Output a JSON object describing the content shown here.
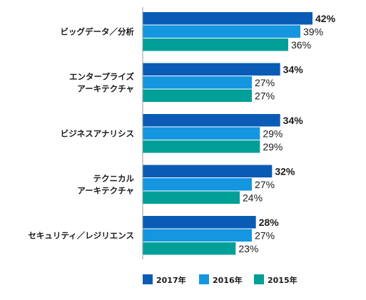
{
  "chart_data": {
    "type": "bar",
    "orientation": "horizontal",
    "categories": [
      [
        "ビッグデータ／分析"
      ],
      [
        "エンタープライズ",
        "アーキテクチャ"
      ],
      [
        "ビジネスアナリシス"
      ],
      [
        "テクニカル",
        "アーキテクチャ"
      ],
      [
        "セキュリティ／レジリエンス"
      ]
    ],
    "series": [
      {
        "name": "2017年",
        "color": "#0a5bb6",
        "values": [
          42,
          34,
          34,
          32,
          28
        ],
        "labels": [
          "42%",
          "34%",
          "34%",
          "32%",
          "28%"
        ],
        "bold_labels": true
      },
      {
        "name": "2016年",
        "color": "#1596e0",
        "values": [
          39,
          27,
          29,
          27,
          27
        ],
        "labels": [
          "39%",
          "27%",
          "29%",
          "27%",
          "27%"
        ],
        "bold_labels": false
      },
      {
        "name": "2015年",
        "color": "#009f98",
        "values": [
          36,
          27,
          29,
          24,
          23
        ],
        "labels": [
          "36%",
          "27%",
          "29%",
          "24%",
          "23%"
        ],
        "bold_labels": false
      }
    ],
    "xlim": [
      0,
      42
    ],
    "grid": false,
    "legend_position": "bottom-center"
  }
}
